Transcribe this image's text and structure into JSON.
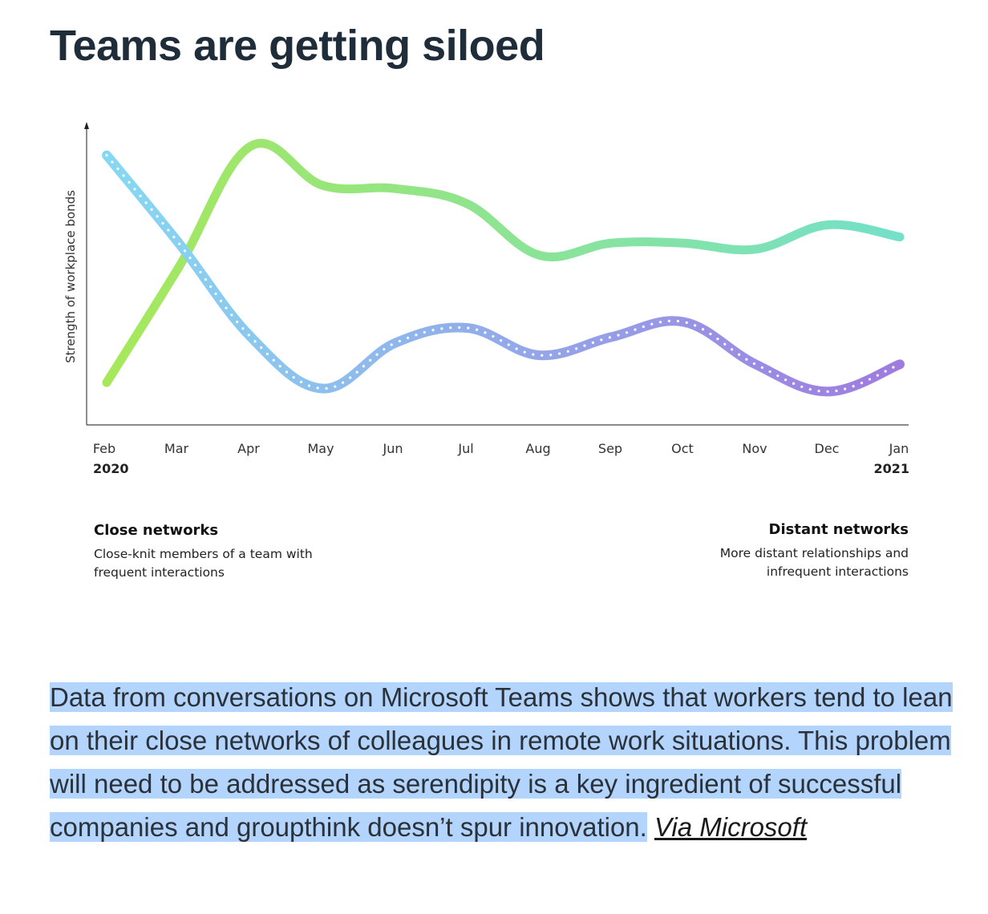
{
  "title": "Teams are getting siloed",
  "chart_data": {
    "type": "line",
    "ylabel": "Strength of workplace bonds",
    "categories": [
      "Feb",
      "Mar",
      "Apr",
      "May",
      "Jun",
      "Jul",
      "Aug",
      "Sep",
      "Oct",
      "Nov",
      "Dec",
      "Jan"
    ],
    "year_start": "2020",
    "year_end": "2021",
    "ylim": [
      0,
      100
    ],
    "series": [
      {
        "name": "Close networks",
        "description_lines": [
          "Close-knit members of a team with",
          "frequent interactions"
        ],
        "values": [
          14,
          52,
          92,
          79,
          78,
          73,
          56,
          60,
          60,
          58,
          66,
          62
        ],
        "color_start": "#a6e85a",
        "color_end": "#74e0c9"
      },
      {
        "name": "Distant networks",
        "description_lines": [
          "More distant relationships and",
          "infrequent interactions"
        ],
        "values": [
          89,
          60,
          29,
          12,
          27,
          32,
          23,
          29,
          34,
          20,
          11,
          20
        ],
        "color_start": "#86d9f2",
        "color_end": "#9f7be0"
      }
    ]
  },
  "caption": {
    "text": "Data from conversations on Microsoft Teams shows that workers tend to lean on their close networks of colleagues in remote work situations. This problem will need to be addressed as serendipity is a key ingredient of successful companies and groupthink doesn’t spur innovation.",
    "link_text": "Via Microsoft"
  }
}
